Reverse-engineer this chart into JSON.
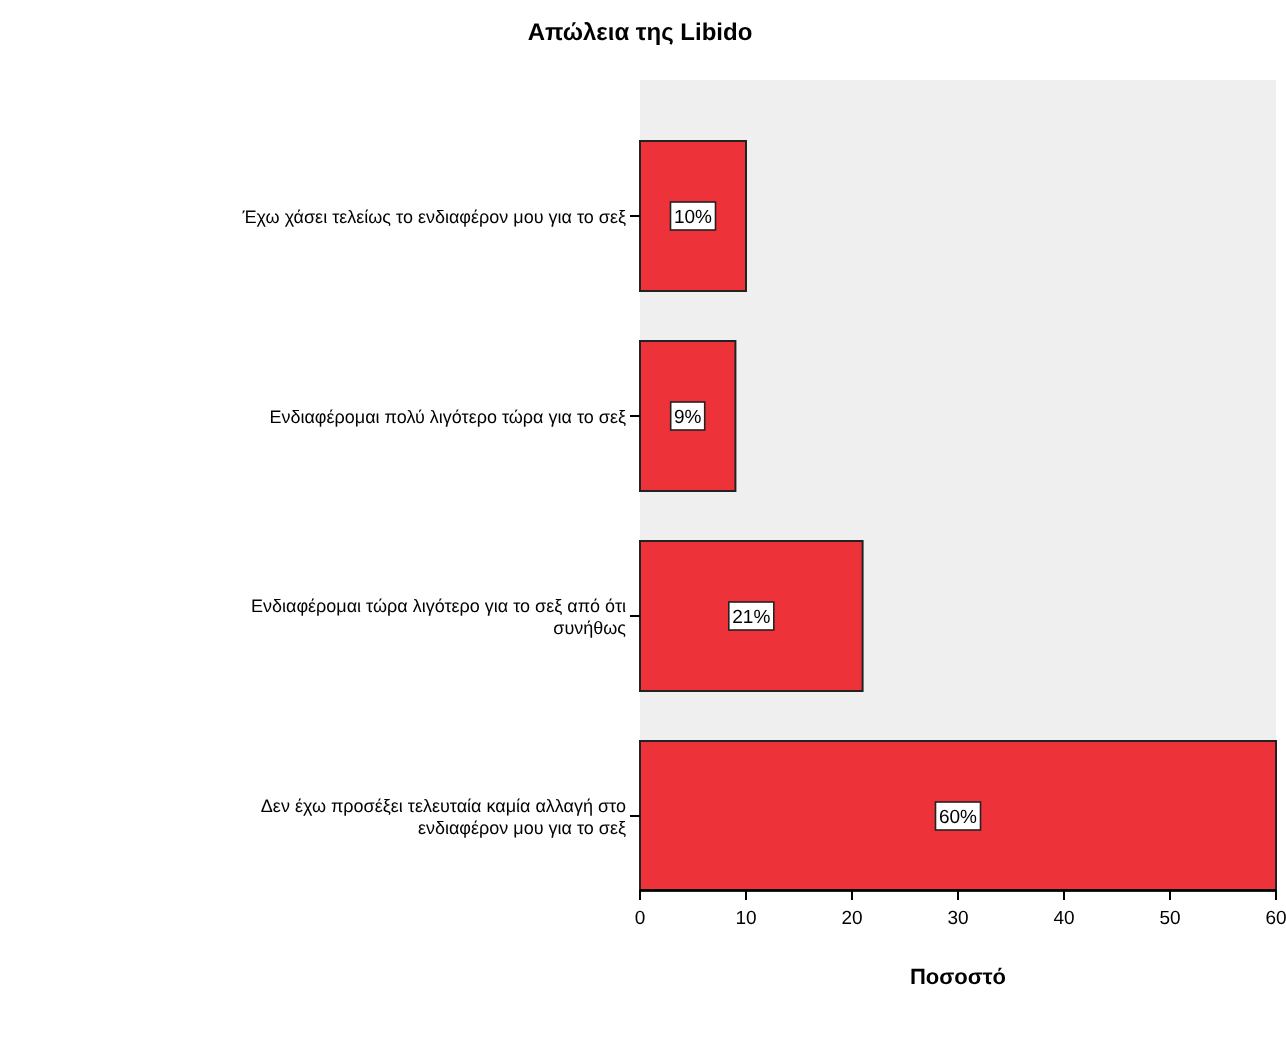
{
  "chart_data": {
    "type": "bar",
    "orientation": "horizontal",
    "title": "Απώλεια της Libido",
    "xlabel": "Ποσοστό",
    "categories": [
      "Έχω χάσει τελείως το ενδιαφέρον μου για το σεξ",
      "Ενδιαφέρομαι πολύ λιγότερο τώρα για το σεξ",
      "Ενδιαφέρομαι τώρα λιγότερο για το σεξ από ότι συνήθως",
      "Δεν έχω προσέξει τελευταία καμία αλλαγή στο ενδιαφέρον μου για το σεξ"
    ],
    "values": [
      10,
      9,
      21,
      60
    ],
    "value_labels": [
      "10%",
      "9%",
      "21%",
      "60%"
    ],
    "color": "#ee3239",
    "xlim": [
      0,
      60
    ],
    "xticks": [
      0,
      10,
      20,
      30,
      40,
      50,
      60
    ],
    "grid": false
  }
}
